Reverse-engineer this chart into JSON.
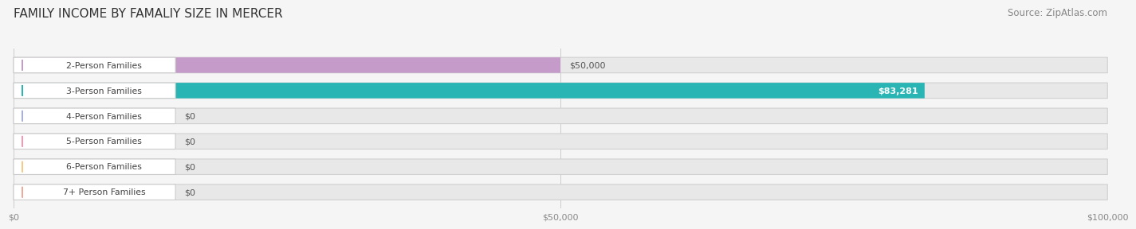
{
  "title": "FAMILY INCOME BY FAMALIY SIZE IN MERCER",
  "source": "Source: ZipAtlas.com",
  "categories": [
    "2-Person Families",
    "3-Person Families",
    "4-Person Families",
    "5-Person Families",
    "6-Person Families",
    "7+ Person Families"
  ],
  "values": [
    50000,
    83281,
    0,
    0,
    0,
    0
  ],
  "bar_colors": [
    "#c49bc9",
    "#2ab5b5",
    "#a8aee8",
    "#f898b0",
    "#f8c888",
    "#f0a898"
  ],
  "value_labels": [
    "$50,000",
    "$83,281",
    "$0",
    "$0",
    "$0",
    "$0"
  ],
  "value_label_inside": [
    false,
    true,
    false,
    false,
    false,
    false
  ],
  "xlim": [
    0,
    100000
  ],
  "xticks": [
    0,
    50000,
    100000
  ],
  "xtick_labels": [
    "$0",
    "$50,000",
    "$100,000"
  ],
  "background_color": "#f5f5f5",
  "bar_background_color": "#e8e8e8",
  "title_fontsize": 11,
  "source_fontsize": 8.5,
  "bar_height": 0.6
}
